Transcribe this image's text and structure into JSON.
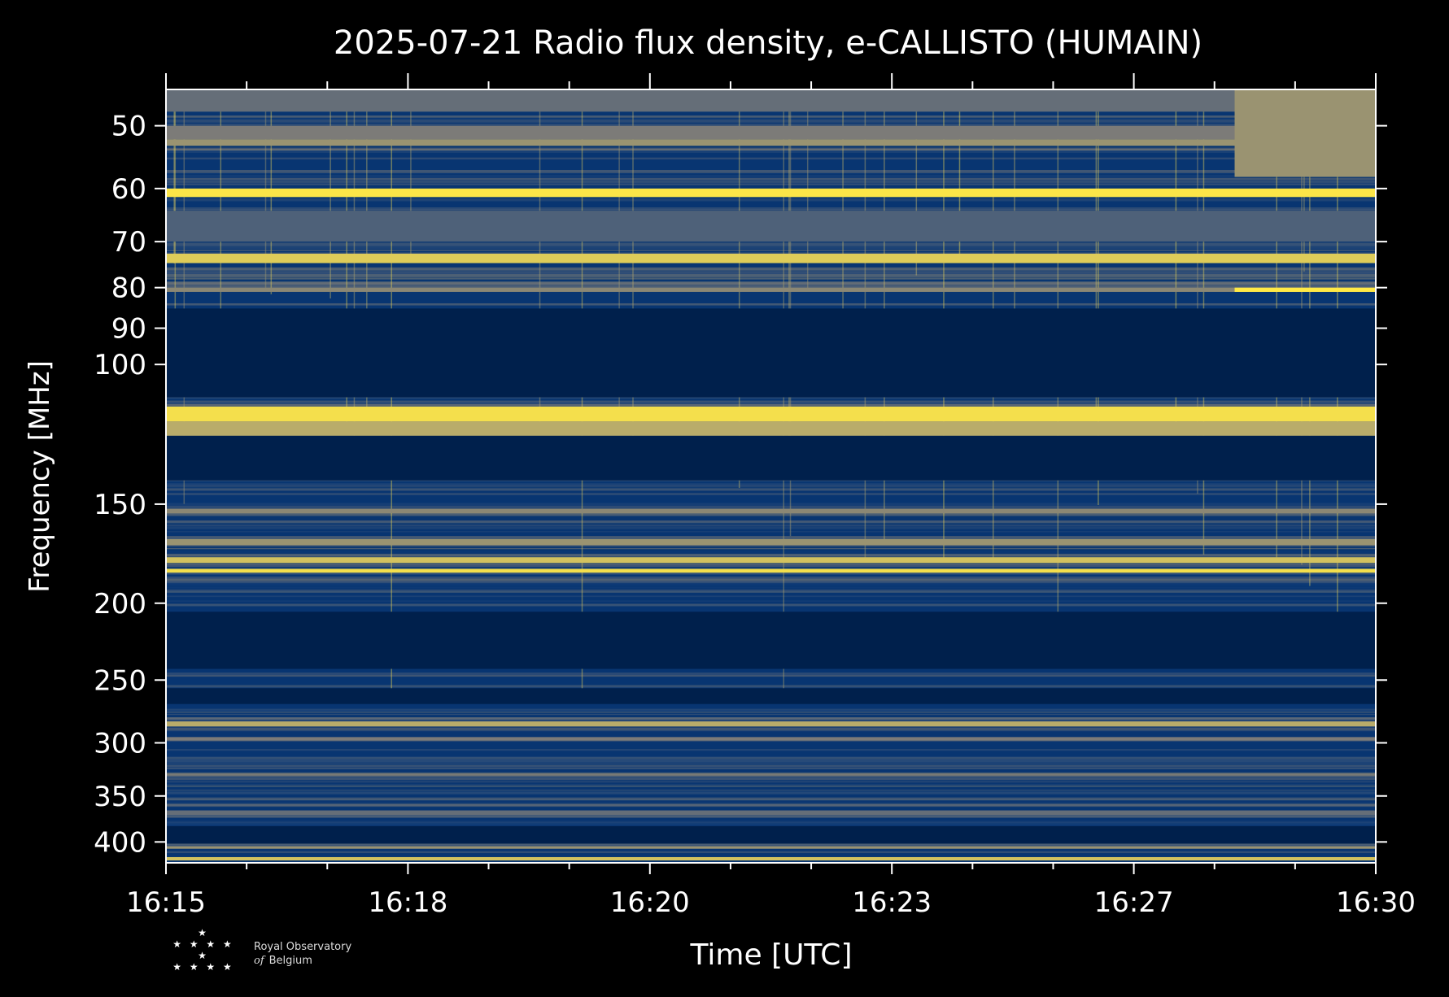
{
  "chart_data": {
    "type": "heatmap",
    "title": "2025-07-21 Radio flux density, e-CALLISTO (HUMAIN)",
    "xlabel": "Time [UTC]",
    "ylabel": "Frequency [MHz]",
    "x_ticks": [
      "16:15",
      "16:18",
      "16:20",
      "16:23",
      "16:27",
      "16:30"
    ],
    "y_ticks": [
      50,
      60,
      70,
      80,
      90,
      100,
      150,
      200,
      250,
      300,
      350,
      400
    ],
    "y_scale": "log",
    "ylim": [
      425,
      45
    ],
    "xlim": [
      "16:15",
      "16:30"
    ],
    "colormap": [
      "#00204c",
      "#0a3a7a",
      "#7c7b78",
      "#c8b866",
      "#ffe945"
    ],
    "background": "#000000",
    "bands": [
      {
        "f0": 45,
        "f1": 48,
        "level": 0.45
      },
      {
        "f0": 50,
        "f1": 52,
        "level": 0.5
      },
      {
        "f0": 52,
        "f1": 53,
        "level": 0.6
      },
      {
        "f0": 60,
        "f1": 61.5,
        "level": 0.98
      },
      {
        "f0": 64,
        "f1": 70,
        "level": 0.4
      },
      {
        "f0": 72.5,
        "f1": 74.5,
        "level": 0.85
      },
      {
        "f0": 80,
        "f1": 81,
        "level": 0.55
      },
      {
        "f0": 85,
        "f1": 110,
        "level": 0.0
      },
      {
        "f0": 113,
        "f1": 118,
        "level": 0.95
      },
      {
        "f0": 118,
        "f1": 123,
        "level": 0.7
      },
      {
        "f0": 123,
        "f1": 140,
        "level": 0.0
      },
      {
        "f0": 152,
        "f1": 154,
        "level": 0.55
      },
      {
        "f0": 166,
        "f1": 169,
        "level": 0.6
      },
      {
        "f0": 175,
        "f1": 178,
        "level": 0.8
      },
      {
        "f0": 181,
        "f1": 183,
        "level": 0.95
      },
      {
        "f0": 205,
        "f1": 242,
        "level": 0.0
      },
      {
        "f0": 256,
        "f1": 268,
        "level": 0.0
      },
      {
        "f0": 282,
        "f1": 286,
        "level": 0.7
      },
      {
        "f0": 295,
        "f1": 298,
        "level": 0.5
      },
      {
        "f0": 365,
        "f1": 370,
        "level": 0.45
      },
      {
        "f0": 382,
        "f1": 402,
        "level": 0.0
      },
      {
        "f0": 405,
        "f1": 408,
        "level": 0.6
      },
      {
        "f0": 418,
        "f1": 422,
        "level": 0.8
      }
    ],
    "events": [
      {
        "time": "16:28:15",
        "f0": 80,
        "f1": 81,
        "level": 1.0,
        "note": "bright line continues to end"
      },
      {
        "time": "16:28:15",
        "f0": 45,
        "f1": 58,
        "level": 0.6,
        "note": "band brightens after"
      }
    ]
  },
  "logo": {
    "stars_row1": "★",
    "stars_row2": "★ ★ ★ ★ ★",
    "stars_row3": "★ ★ ★ ★",
    "line1": "Royal Observatory",
    "line2_prefix": "of",
    "line2": "Belgium"
  }
}
